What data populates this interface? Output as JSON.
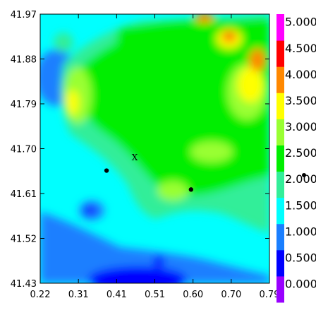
{
  "chart_data": {
    "type": "heatmap",
    "title": "",
    "xlabel": "",
    "ylabel": "",
    "xlim": [
      0.22,
      0.79
    ],
    "ylim": [
      41.43,
      41.97
    ],
    "x_ticks": [
      "0.22",
      "0.31",
      "0.41",
      "0.51",
      "0.60",
      "0.70",
      "0.79"
    ],
    "y_ticks": [
      "41.97",
      "41.88",
      "41.79",
      "41.70",
      "41.61",
      "41.52",
      "41.43"
    ],
    "colorbar": {
      "levels": [
        {
          "label": "0.000",
          "color": "#9900ff"
        },
        {
          "label": "0.500",
          "color": "#0000ff"
        },
        {
          "label": "1.000",
          "color": "#1a7fff"
        },
        {
          "label": "1.500",
          "color": "#00ffff"
        },
        {
          "label": "2.000",
          "color": "#33ee99"
        },
        {
          "label": "2.500",
          "color": "#00ee00"
        },
        {
          "label": "3.000",
          "color": "#99ff33"
        },
        {
          "label": "3.500",
          "color": "#ffff00"
        },
        {
          "label": "4.000",
          "color": "#ff8800"
        },
        {
          "label": "4.500",
          "color": "#ff0000"
        },
        {
          "label": "5.000",
          "color": "#ff00ff"
        }
      ]
    },
    "points": [
      {
        "x": 0.385,
        "y": 41.656
      },
      {
        "x": 0.595,
        "y": 41.618
      }
    ],
    "annotations": [
      {
        "text": "X",
        "x": 0.455,
        "y": 41.682
      }
    ],
    "legend_marker": "dot"
  }
}
